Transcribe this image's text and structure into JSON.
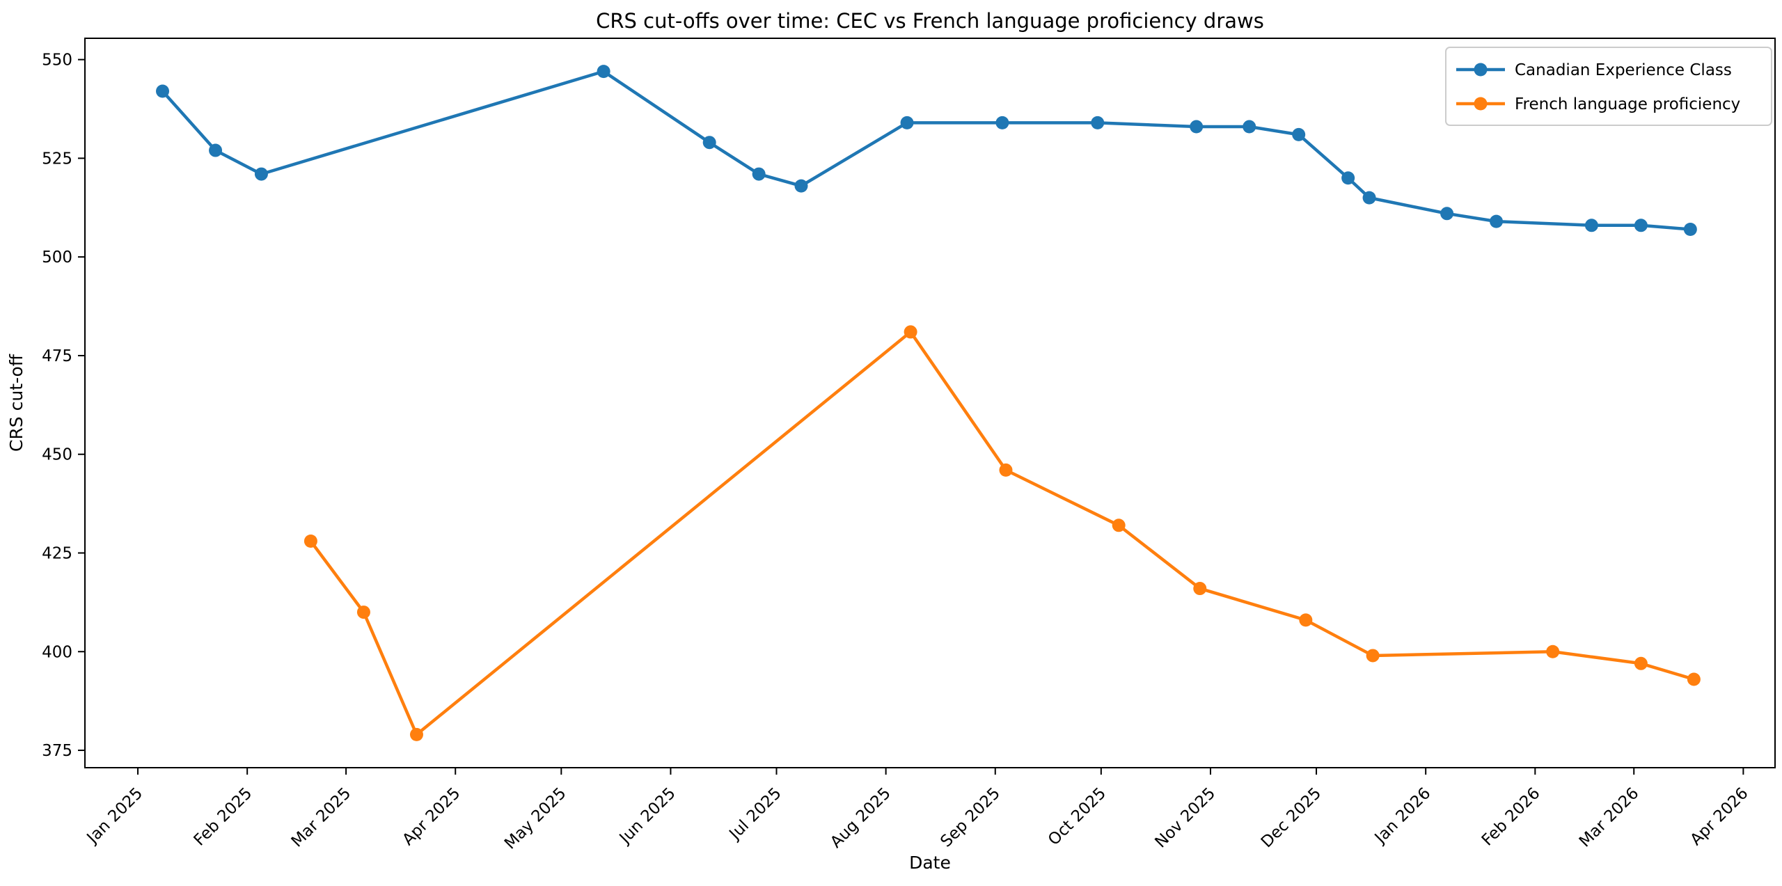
{
  "chart_data": {
    "type": "line",
    "title": "CRS cut-offs over time: CEC vs French language proficiency draws",
    "xlabel": "Date",
    "ylabel": "CRS cut-off",
    "grid": false,
    "legend_position": "upper right",
    "ylim": [
      370.6,
      555.4
    ],
    "xlim": [
      "2024-12-17",
      "2026-04-10"
    ],
    "yticks": [
      375,
      400,
      425,
      450,
      475,
      500,
      525,
      550
    ],
    "xticks": [
      {
        "label": "Jan 2025",
        "date": "2025-01-01"
      },
      {
        "label": "Feb 2025",
        "date": "2025-02-01"
      },
      {
        "label": "Mar 2025",
        "date": "2025-03-01"
      },
      {
        "label": "Apr 2025",
        "date": "2025-04-01"
      },
      {
        "label": "May 2025",
        "date": "2025-05-01"
      },
      {
        "label": "Jun 2025",
        "date": "2025-06-01"
      },
      {
        "label": "Jul 2025",
        "date": "2025-07-01"
      },
      {
        "label": "Aug 2025",
        "date": "2025-08-01"
      },
      {
        "label": "Sep 2025",
        "date": "2025-09-01"
      },
      {
        "label": "Oct 2025",
        "date": "2025-10-01"
      },
      {
        "label": "Nov 2025",
        "date": "2025-11-01"
      },
      {
        "label": "Dec 2025",
        "date": "2025-12-01"
      },
      {
        "label": "Jan 2026",
        "date": "2026-01-01"
      },
      {
        "label": "Feb 2026",
        "date": "2026-02-01"
      },
      {
        "label": "Mar 2026",
        "date": "2026-03-01"
      },
      {
        "label": "Apr 2026",
        "date": "2026-04-01"
      }
    ],
    "series": [
      {
        "name": "Canadian Experience Class",
        "color": "#1f77b4",
        "points": [
          {
            "date": "2025-01-08",
            "value": 542
          },
          {
            "date": "2025-01-23",
            "value": 527
          },
          {
            "date": "2025-02-05",
            "value": 521
          },
          {
            "date": "2025-05-13",
            "value": 547
          },
          {
            "date": "2025-06-12",
            "value": 529
          },
          {
            "date": "2025-06-26",
            "value": 521
          },
          {
            "date": "2025-07-08",
            "value": 518
          },
          {
            "date": "2025-08-07",
            "value": 534
          },
          {
            "date": "2025-09-03",
            "value": 534
          },
          {
            "date": "2025-09-30",
            "value": 534
          },
          {
            "date": "2025-10-28",
            "value": 533
          },
          {
            "date": "2025-11-12",
            "value": 533
          },
          {
            "date": "2025-11-26",
            "value": 531
          },
          {
            "date": "2025-12-10",
            "value": 520
          },
          {
            "date": "2025-12-16",
            "value": 515
          },
          {
            "date": "2026-01-07",
            "value": 511
          },
          {
            "date": "2026-01-21",
            "value": 509
          },
          {
            "date": "2026-02-17",
            "value": 508
          },
          {
            "date": "2026-03-03",
            "value": 508
          },
          {
            "date": "2026-03-17",
            "value": 507
          }
        ]
      },
      {
        "name": "French language proficiency",
        "color": "#ff7f0e",
        "points": [
          {
            "date": "2025-02-19",
            "value": 428
          },
          {
            "date": "2025-03-06",
            "value": 410
          },
          {
            "date": "2025-03-21",
            "value": 379
          },
          {
            "date": "2025-08-08",
            "value": 481
          },
          {
            "date": "2025-09-04",
            "value": 446
          },
          {
            "date": "2025-10-06",
            "value": 432
          },
          {
            "date": "2025-10-29",
            "value": 416
          },
          {
            "date": "2025-11-28",
            "value": 408
          },
          {
            "date": "2025-12-17",
            "value": 399
          },
          {
            "date": "2026-02-06",
            "value": 400
          },
          {
            "date": "2026-03-03",
            "value": 397
          },
          {
            "date": "2026-03-18",
            "value": 393
          }
        ]
      }
    ],
    "styles": {
      "line_width": 4.5,
      "marker_radius": 9.5,
      "spine_color": "#000000",
      "legend_border_color": "#cccccc",
      "background": "#ffffff"
    }
  }
}
